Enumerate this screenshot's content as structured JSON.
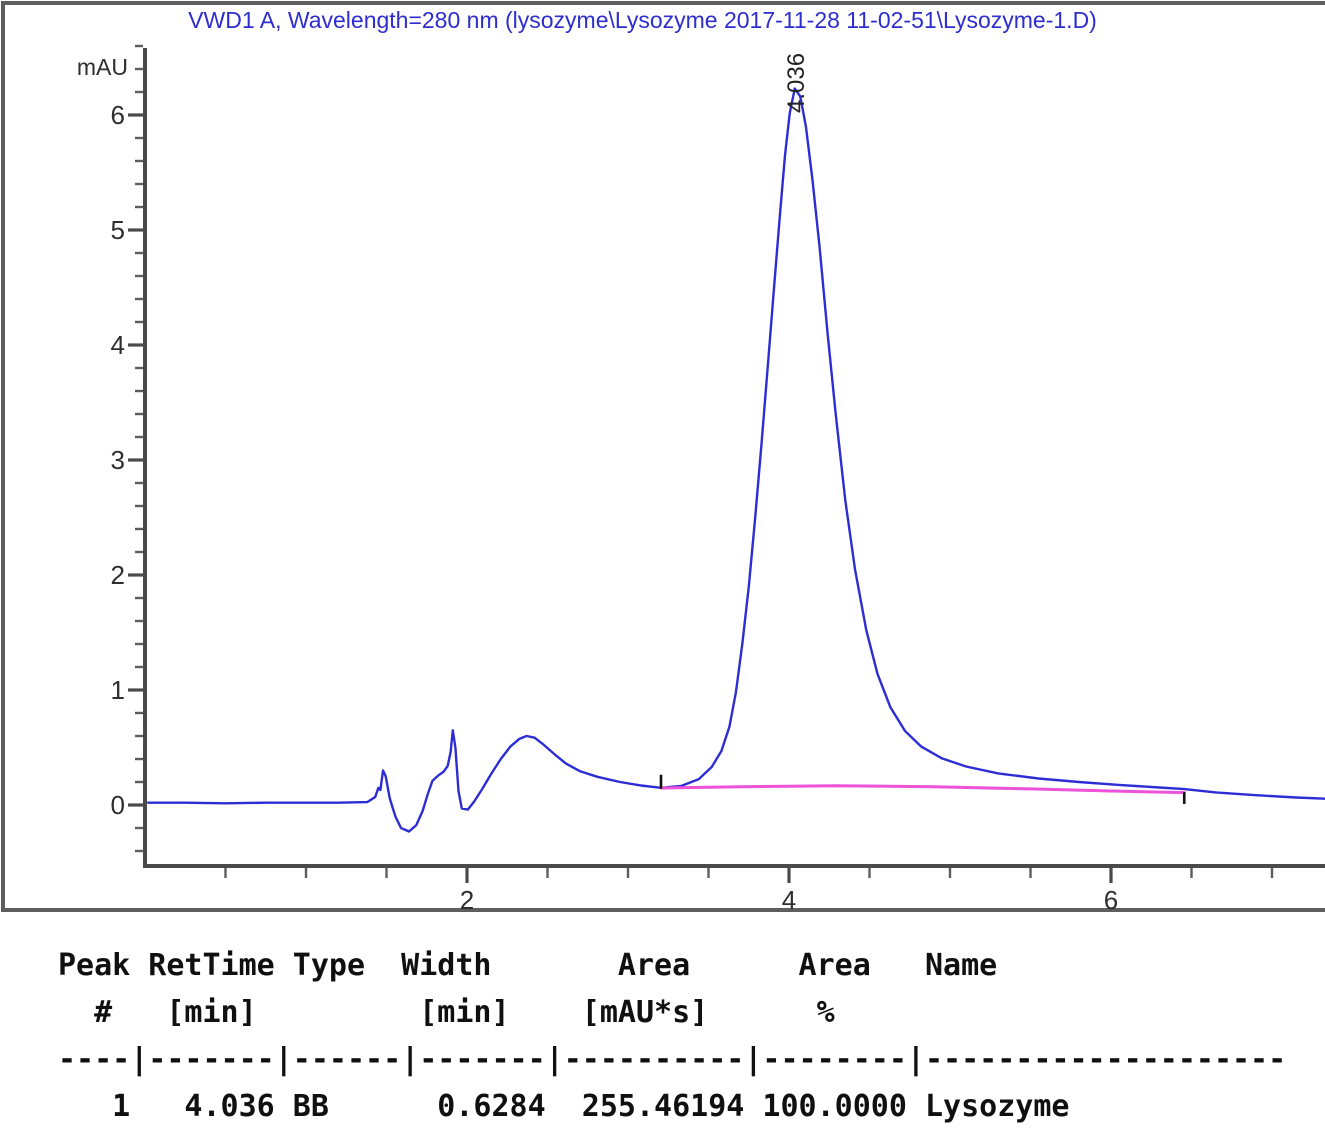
{
  "chart_data": {
    "type": "line",
    "title": "VWD1 A, Wavelength=280 nm (lysozyme\\Lysozyme 2017-11-28 11-02-51\\Lysozyme-1.D)",
    "xlabel": "",
    "ylabel": "mAU",
    "xlim": [
      0,
      7.33
    ],
    "ylim": [
      -0.53,
      6.58
    ],
    "grid": false,
    "x_ticks_major": [
      2,
      4,
      6
    ],
    "x_minor_tick_step": 0.5,
    "y_ticks_major": [
      0,
      1,
      2,
      3,
      4,
      5,
      6
    ],
    "y_minor_tick_step": 0.2,
    "legend": "none",
    "colors": {
      "signal": "#2d2dd6",
      "baseline": "#ee52d8",
      "axis": "#4a4a4a",
      "tick_label": "#2e2e2e",
      "marker": "#111111",
      "peak_label": "#222222"
    },
    "series": [
      {
        "name": "VWD1 A signal",
        "color": "#2d2dd6",
        "points": [
          [
            0.02,
            0.02
          ],
          [
            0.25,
            0.02
          ],
          [
            0.5,
            0.015
          ],
          [
            0.75,
            0.02
          ],
          [
            1.0,
            0.02
          ],
          [
            1.2,
            0.02
          ],
          [
            1.38,
            0.025
          ],
          [
            1.43,
            0.07
          ],
          [
            1.45,
            0.15
          ],
          [
            1.462,
            0.13
          ],
          [
            1.478,
            0.3
          ],
          [
            1.495,
            0.25
          ],
          [
            1.52,
            0.06
          ],
          [
            1.555,
            -0.1
          ],
          [
            1.59,
            -0.2
          ],
          [
            1.64,
            -0.23
          ],
          [
            1.685,
            -0.175
          ],
          [
            1.725,
            -0.05
          ],
          [
            1.755,
            0.09
          ],
          [
            1.785,
            0.21
          ],
          [
            1.82,
            0.255
          ],
          [
            1.855,
            0.29
          ],
          [
            1.88,
            0.34
          ],
          [
            1.898,
            0.46
          ],
          [
            1.912,
            0.65
          ],
          [
            1.928,
            0.5
          ],
          [
            1.947,
            0.12
          ],
          [
            1.968,
            -0.03
          ],
          [
            2.005,
            -0.04
          ],
          [
            2.045,
            0.03
          ],
          [
            2.095,
            0.14
          ],
          [
            2.15,
            0.27
          ],
          [
            2.21,
            0.4
          ],
          [
            2.27,
            0.51
          ],
          [
            2.325,
            0.575
          ],
          [
            2.37,
            0.6
          ],
          [
            2.42,
            0.585
          ],
          [
            2.475,
            0.525
          ],
          [
            2.545,
            0.44
          ],
          [
            2.615,
            0.36
          ],
          [
            2.7,
            0.295
          ],
          [
            2.81,
            0.245
          ],
          [
            2.95,
            0.2
          ],
          [
            3.08,
            0.17
          ],
          [
            3.205,
            0.15
          ],
          [
            3.33,
            0.165
          ],
          [
            3.44,
            0.225
          ],
          [
            3.52,
            0.33
          ],
          [
            3.58,
            0.47
          ],
          [
            3.63,
            0.68
          ],
          [
            3.67,
            0.98
          ],
          [
            3.71,
            1.4
          ],
          [
            3.75,
            1.9
          ],
          [
            3.79,
            2.5
          ],
          [
            3.83,
            3.15
          ],
          [
            3.87,
            3.85
          ],
          [
            3.91,
            4.55
          ],
          [
            3.945,
            5.15
          ],
          [
            3.975,
            5.65
          ],
          [
            4.005,
            6.02
          ],
          [
            4.036,
            6.23
          ],
          [
            4.07,
            6.16
          ],
          [
            4.105,
            5.9
          ],
          [
            4.145,
            5.45
          ],
          [
            4.19,
            4.85
          ],
          [
            4.24,
            4.1
          ],
          [
            4.29,
            3.4
          ],
          [
            4.35,
            2.65
          ],
          [
            4.41,
            2.05
          ],
          [
            4.48,
            1.52
          ],
          [
            4.55,
            1.14
          ],
          [
            4.63,
            0.85
          ],
          [
            4.72,
            0.645
          ],
          [
            4.82,
            0.51
          ],
          [
            4.95,
            0.405
          ],
          [
            5.1,
            0.335
          ],
          [
            5.3,
            0.275
          ],
          [
            5.55,
            0.23
          ],
          [
            5.8,
            0.2
          ],
          [
            6.05,
            0.175
          ],
          [
            6.3,
            0.152
          ],
          [
            6.455,
            0.138
          ],
          [
            6.65,
            0.11
          ],
          [
            6.9,
            0.085
          ],
          [
            7.15,
            0.065
          ],
          [
            7.33,
            0.055
          ]
        ]
      },
      {
        "name": "integration baseline",
        "color": "#ee52d8",
        "points": [
          [
            3.205,
            0.148
          ],
          [
            3.7,
            0.158
          ],
          [
            4.3,
            0.168
          ],
          [
            4.9,
            0.158
          ],
          [
            5.5,
            0.14
          ],
          [
            6.0,
            0.122
          ],
          [
            6.455,
            0.108
          ]
        ]
      }
    ],
    "peaks": [
      {
        "label": "4.036",
        "ret_time_min": 4.036,
        "apex_mau": 6.23
      }
    ],
    "integration_markers": [
      {
        "t_min": 3.205,
        "mau": 0.15,
        "direction": "up"
      },
      {
        "t_min": 6.455,
        "mau": 0.105,
        "direction": "down"
      }
    ]
  },
  "peak_table": {
    "lines": [
      "Peak RetTime Type  Width       Area      Area   Name",
      "  #   [min]         [min]    [mAU*s]      %",
      "----|-------|------|-------|----------|--------|--------------------",
      "   1   4.036 BB      0.6284  255.46194 100.0000 Lysozyme"
    ],
    "columns": [
      "Peak #",
      "RetTime [min]",
      "Type",
      "Width [min]",
      "Area [mAU*s]",
      "Area %",
      "Name"
    ],
    "rows": [
      {
        "peak": "1",
        "ret_time": "4.036",
        "type": "BB",
        "width": "0.6284",
        "area": "255.46194",
        "area_pct": "100.0000",
        "name": "Lysozyme"
      }
    ]
  }
}
